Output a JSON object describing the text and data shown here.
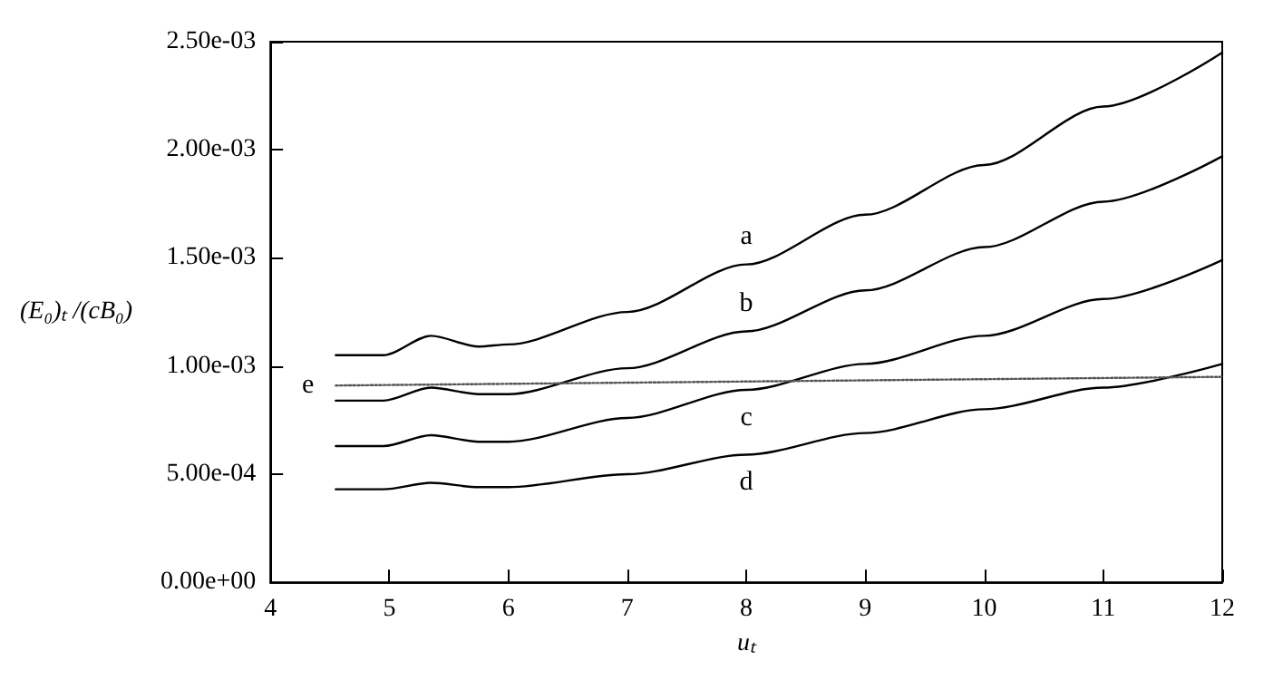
{
  "chart_data": {
    "type": "line",
    "xlabel": "uₜ",
    "ylabel": "(E₀)ₜ /(cB₀)",
    "xlim": [
      4,
      12
    ],
    "xticks": [
      4,
      5,
      6,
      7,
      8,
      9,
      10,
      11,
      12
    ],
    "ylim": [
      0,
      0.0025
    ],
    "yticks": [
      {
        "value": 0,
        "label": "0.00e+00"
      },
      {
        "value": 0.0005,
        "label": "5.00e-04"
      },
      {
        "value": 0.001,
        "label": "1.00e-03"
      },
      {
        "value": 0.0015,
        "label": "1.50e-03"
      },
      {
        "value": 0.002,
        "label": "2.00e-03"
      },
      {
        "value": 0.0025,
        "label": "2.50e-03"
      }
    ],
    "grid": false,
    "legend": false,
    "marker": "none",
    "x": [
      4.55,
      4.95,
      5.35,
      5.75,
      6,
      7,
      8,
      9,
      10,
      11,
      12
    ],
    "series": [
      {
        "name": "a",
        "color": "#000000",
        "values": [
          0.00105,
          0.00105,
          0.00114,
          0.00109,
          0.0011,
          0.00125,
          0.00147,
          0.0017,
          0.00193,
          0.0022,
          0.00245
        ]
      },
      {
        "name": "b",
        "color": "#000000",
        "values": [
          0.00084,
          0.00084,
          0.0009,
          0.00087,
          0.00087,
          0.00099,
          0.00116,
          0.00135,
          0.00155,
          0.00176,
          0.00197
        ]
      },
      {
        "name": "c",
        "color": "#000000",
        "values": [
          0.00063,
          0.00063,
          0.00068,
          0.00065,
          0.00065,
          0.00076,
          0.00089,
          0.00101,
          0.00114,
          0.00131,
          0.00149
        ]
      },
      {
        "name": "d",
        "color": "#000000",
        "values": [
          0.00043,
          0.00043,
          0.00046,
          0.00044,
          0.00044,
          0.0005,
          0.00059,
          0.00069,
          0.0008,
          0.0009,
          0.00101
        ]
      },
      {
        "name": "e",
        "color": "#555555",
        "line_style": "dotted",
        "x": [
          4.55,
          12
        ],
        "values": [
          0.00091,
          0.00095
        ]
      }
    ]
  }
}
